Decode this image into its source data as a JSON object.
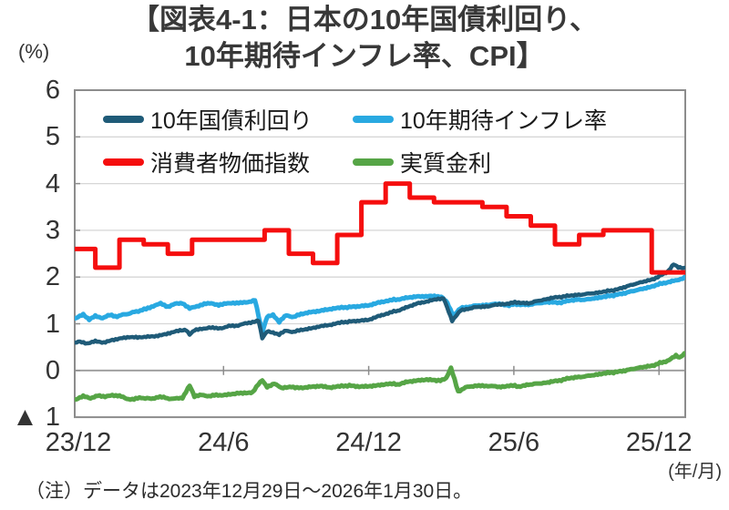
{
  "title": {
    "line1": "【図表4-1：日本の10年国債利回り、",
    "line2": "10年期待インフレ率、CPI】"
  },
  "note": "（注）データは2023年12月29日～2026年1月30日。",
  "axis": {
    "y_unit": "(%)",
    "x_unit": "(年/月)",
    "y_ticks": [
      "6",
      "5",
      "4",
      "3",
      "2",
      "1",
      "0",
      "▲ 1"
    ],
    "y_values": [
      6,
      5,
      4,
      3,
      2,
      1,
      0,
      -1
    ],
    "x_ticks": [
      "23/12",
      "24/6",
      "24/12",
      "25/6",
      "25/12"
    ],
    "x_values": [
      0,
      6,
      12,
      18,
      24
    ]
  },
  "legend": [
    {
      "label": "10年国債利回り",
      "color": "#1F5B78"
    },
    {
      "label": "10年期待インフレ率",
      "color": "#29A9E1"
    },
    {
      "label": "消費者物価指数",
      "color": "#F50E0E"
    },
    {
      "label": "実質金利",
      "color": "#56A546"
    }
  ],
  "colors": {
    "grid": "#d6d6d6",
    "border": "#8c8c8c",
    "zero_axis": "#9b9b9b",
    "text": "#333333"
  },
  "chart_data": {
    "type": "line",
    "title": "【図表4-1：日本の10年国債利回り、10年期待インフレ率、CPI】",
    "ylabel": "(%)",
    "xlabel": "(年/月)",
    "ylim": [
      -1,
      6
    ],
    "grid": true,
    "legend_position": "top-inside",
    "x_note": "t = months since 2023/12; range 2023/12/29 - 2026/1/30",
    "t_range": [
      -0.151,
      25.08
    ],
    "series": [
      {
        "name": "10年国債利回り",
        "type": "line",
        "color": "#1F5B78",
        "points": [
          [
            -0.15,
            0.6
          ],
          [
            0,
            0.62
          ],
          [
            0.35,
            0.57
          ],
          [
            0.7,
            0.62
          ],
          [
            1.05,
            0.6
          ],
          [
            1.4,
            0.66
          ],
          [
            1.75,
            0.69
          ],
          [
            2.1,
            0.71
          ],
          [
            2.45,
            0.7
          ],
          [
            2.8,
            0.72
          ],
          [
            3.15,
            0.74
          ],
          [
            3.5,
            0.77
          ],
          [
            3.85,
            0.81
          ],
          [
            4.2,
            0.85
          ],
          [
            4.45,
            0.87
          ],
          [
            4.6,
            0.76
          ],
          [
            4.8,
            0.86
          ],
          [
            5.1,
            0.89
          ],
          [
            5.4,
            0.92
          ],
          [
            5.7,
            0.9
          ],
          [
            6,
            0.92
          ],
          [
            6.3,
            0.95
          ],
          [
            6.6,
            0.97
          ],
          [
            6.9,
            1.0
          ],
          [
            7.2,
            1.04
          ],
          [
            7.45,
            1.06
          ],
          [
            7.6,
            0.7
          ],
          [
            7.8,
            0.84
          ],
          [
            8.05,
            0.8
          ],
          [
            8.3,
            0.77
          ],
          [
            8.6,
            0.85
          ],
          [
            8.9,
            0.83
          ],
          [
            9.2,
            0.86
          ],
          [
            9.6,
            0.89
          ],
          [
            10,
            0.94
          ],
          [
            10.4,
            0.97
          ],
          [
            10.8,
            1.02
          ],
          [
            11.2,
            1.05
          ],
          [
            11.6,
            1.07
          ],
          [
            12,
            1.09
          ],
          [
            12.4,
            1.17
          ],
          [
            12.8,
            1.23
          ],
          [
            13.2,
            1.28
          ],
          [
            13.6,
            1.36
          ],
          [
            14,
            1.43
          ],
          [
            14.4,
            1.47
          ],
          [
            14.8,
            1.52
          ],
          [
            15.1,
            1.55
          ],
          [
            15.45,
            1.07
          ],
          [
            15.8,
            1.28
          ],
          [
            16.1,
            1.32
          ],
          [
            16.5,
            1.36
          ],
          [
            17,
            1.38
          ],
          [
            17.4,
            1.42
          ],
          [
            17.8,
            1.44
          ],
          [
            18.2,
            1.46
          ],
          [
            18.6,
            1.44
          ],
          [
            19,
            1.49
          ],
          [
            19.4,
            1.53
          ],
          [
            19.8,
            1.57
          ],
          [
            20.2,
            1.59
          ],
          [
            20.6,
            1.61
          ],
          [
            21,
            1.64
          ],
          [
            21.4,
            1.66
          ],
          [
            21.8,
            1.69
          ],
          [
            22.2,
            1.73
          ],
          [
            22.6,
            1.79
          ],
          [
            23,
            1.85
          ],
          [
            23.4,
            1.91
          ],
          [
            23.8,
            1.97
          ],
          [
            24.1,
            2.04
          ],
          [
            24.35,
            2.12
          ],
          [
            24.6,
            2.27
          ],
          [
            24.8,
            2.21
          ],
          [
            25.05,
            2.18
          ]
        ]
      },
      {
        "name": "10年期待インフレ率",
        "type": "line",
        "color": "#29A9E1",
        "points": [
          [
            -0.15,
            1.12
          ],
          [
            0.2,
            1.2
          ],
          [
            0.45,
            1.1
          ],
          [
            0.7,
            1.16
          ],
          [
            1,
            1.13
          ],
          [
            1.3,
            1.18
          ],
          [
            1.6,
            1.16
          ],
          [
            2,
            1.21
          ],
          [
            2.4,
            1.26
          ],
          [
            2.8,
            1.32
          ],
          [
            3.1,
            1.38
          ],
          [
            3.4,
            1.43
          ],
          [
            3.7,
            1.37
          ],
          [
            4,
            1.42
          ],
          [
            4.3,
            1.45
          ],
          [
            4.6,
            1.32
          ],
          [
            4.9,
            1.38
          ],
          [
            5.2,
            1.42
          ],
          [
            5.5,
            1.44
          ],
          [
            5.8,
            1.4
          ],
          [
            6.1,
            1.43
          ],
          [
            6.4,
            1.45
          ],
          [
            6.7,
            1.44
          ],
          [
            7,
            1.47
          ],
          [
            7.3,
            1.5
          ],
          [
            7.6,
            0.82
          ],
          [
            7.8,
            1.15
          ],
          [
            8.05,
            1.18
          ],
          [
            8.3,
            1.04
          ],
          [
            8.6,
            1.18
          ],
          [
            8.9,
            1.15
          ],
          [
            9.2,
            1.2
          ],
          [
            9.6,
            1.24
          ],
          [
            10,
            1.27
          ],
          [
            10.4,
            1.31
          ],
          [
            10.8,
            1.34
          ],
          [
            11.2,
            1.36
          ],
          [
            11.6,
            1.38
          ],
          [
            12,
            1.4
          ],
          [
            12.4,
            1.46
          ],
          [
            12.8,
            1.5
          ],
          [
            13.2,
            1.52
          ],
          [
            13.6,
            1.56
          ],
          [
            14,
            1.58
          ],
          [
            14.5,
            1.6
          ],
          [
            15,
            1.57
          ],
          [
            15.25,
            1.45
          ],
          [
            15.5,
            1.18
          ],
          [
            15.8,
            1.33
          ],
          [
            16.1,
            1.36
          ],
          [
            16.5,
            1.39
          ],
          [
            17,
            1.41
          ],
          [
            17.4,
            1.43
          ],
          [
            17.8,
            1.4
          ],
          [
            18.2,
            1.42
          ],
          [
            18.6,
            1.41
          ],
          [
            19,
            1.44
          ],
          [
            19.4,
            1.46
          ],
          [
            19.8,
            1.45
          ],
          [
            20.2,
            1.48
          ],
          [
            20.6,
            1.51
          ],
          [
            21,
            1.52
          ],
          [
            21.4,
            1.55
          ],
          [
            21.8,
            1.58
          ],
          [
            22.2,
            1.62
          ],
          [
            22.6,
            1.66
          ],
          [
            23,
            1.71
          ],
          [
            23.4,
            1.76
          ],
          [
            23.8,
            1.82
          ],
          [
            24.2,
            1.87
          ],
          [
            24.6,
            1.92
          ],
          [
            25.05,
            1.98
          ]
        ]
      },
      {
        "name": "消費者物価指数",
        "type": "step",
        "color": "#F50E0E",
        "months": [
          "23/12",
          "24/1",
          "24/2",
          "24/3",
          "24/4",
          "24/5",
          "24/6",
          "24/7",
          "24/8",
          "24/9",
          "24/10",
          "24/11",
          "24/12",
          "25/1",
          "25/2",
          "25/3",
          "25/4",
          "25/5",
          "25/6",
          "25/7",
          "25/8",
          "25/9",
          "25/10",
          "25/11",
          "25/12"
        ],
        "values": [
          2.6,
          2.2,
          2.8,
          2.7,
          2.5,
          2.8,
          2.8,
          2.8,
          3.0,
          2.5,
          2.3,
          2.9,
          3.6,
          4.0,
          3.7,
          3.6,
          3.6,
          3.5,
          3.3,
          3.1,
          2.7,
          2.9,
          3.0,
          3.0,
          2.1
        ]
      },
      {
        "name": "実質金利",
        "type": "line",
        "color": "#56A546",
        "points": [
          [
            -0.15,
            -0.62
          ],
          [
            0.2,
            -0.55
          ],
          [
            0.5,
            -0.6
          ],
          [
            0.8,
            -0.53
          ],
          [
            1.1,
            -0.57
          ],
          [
            1.4,
            -0.52
          ],
          [
            1.7,
            -0.55
          ],
          [
            2,
            -0.6
          ],
          [
            2.3,
            -0.62
          ],
          [
            2.6,
            -0.58
          ],
          [
            3,
            -0.61
          ],
          [
            3.3,
            -0.56
          ],
          [
            3.6,
            -0.59
          ],
          [
            4,
            -0.61
          ],
          [
            4.3,
            -0.58
          ],
          [
            4.6,
            -0.33
          ],
          [
            4.8,
            -0.56
          ],
          [
            5.1,
            -0.52
          ],
          [
            5.4,
            -0.55
          ],
          [
            5.7,
            -0.53
          ],
          [
            6,
            -0.52
          ],
          [
            6.4,
            -0.5
          ],
          [
            6.8,
            -0.48
          ],
          [
            7.2,
            -0.46
          ],
          [
            7.6,
            -0.2
          ],
          [
            7.8,
            -0.35
          ],
          [
            8.1,
            -0.28
          ],
          [
            8.4,
            -0.38
          ],
          [
            8.8,
            -0.35
          ],
          [
            9.2,
            -0.38
          ],
          [
            9.6,
            -0.36
          ],
          [
            10,
            -0.34
          ],
          [
            10.4,
            -0.37
          ],
          [
            10.8,
            -0.34
          ],
          [
            11.2,
            -0.32
          ],
          [
            11.6,
            -0.34
          ],
          [
            12,
            -0.33
          ],
          [
            12.4,
            -0.31
          ],
          [
            12.8,
            -0.28
          ],
          [
            13.2,
            -0.3
          ],
          [
            13.6,
            -0.24
          ],
          [
            14,
            -0.22
          ],
          [
            14.4,
            -0.2
          ],
          [
            14.8,
            -0.22
          ],
          [
            15.2,
            -0.18
          ],
          [
            15.4,
            0.05
          ],
          [
            15.55,
            -0.2
          ],
          [
            15.7,
            -0.45
          ],
          [
            16,
            -0.36
          ],
          [
            16.4,
            -0.33
          ],
          [
            17,
            -0.33
          ],
          [
            17.4,
            -0.35
          ],
          [
            17.8,
            -0.32
          ],
          [
            18.2,
            -0.34
          ],
          [
            18.6,
            -0.3
          ],
          [
            19,
            -0.28
          ],
          [
            19.4,
            -0.26
          ],
          [
            19.8,
            -0.22
          ],
          [
            20.2,
            -0.18
          ],
          [
            20.6,
            -0.15
          ],
          [
            21,
            -0.12
          ],
          [
            21.4,
            -0.09
          ],
          [
            21.8,
            -0.06
          ],
          [
            22.2,
            -0.03
          ],
          [
            22.6,
            0
          ],
          [
            23,
            0.04
          ],
          [
            23.4,
            0.08
          ],
          [
            23.8,
            0.12
          ],
          [
            24.2,
            0.18
          ],
          [
            24.5,
            0.25
          ],
          [
            24.7,
            0.32
          ],
          [
            24.85,
            0.27
          ],
          [
            25.05,
            0.35
          ]
        ]
      }
    ]
  }
}
